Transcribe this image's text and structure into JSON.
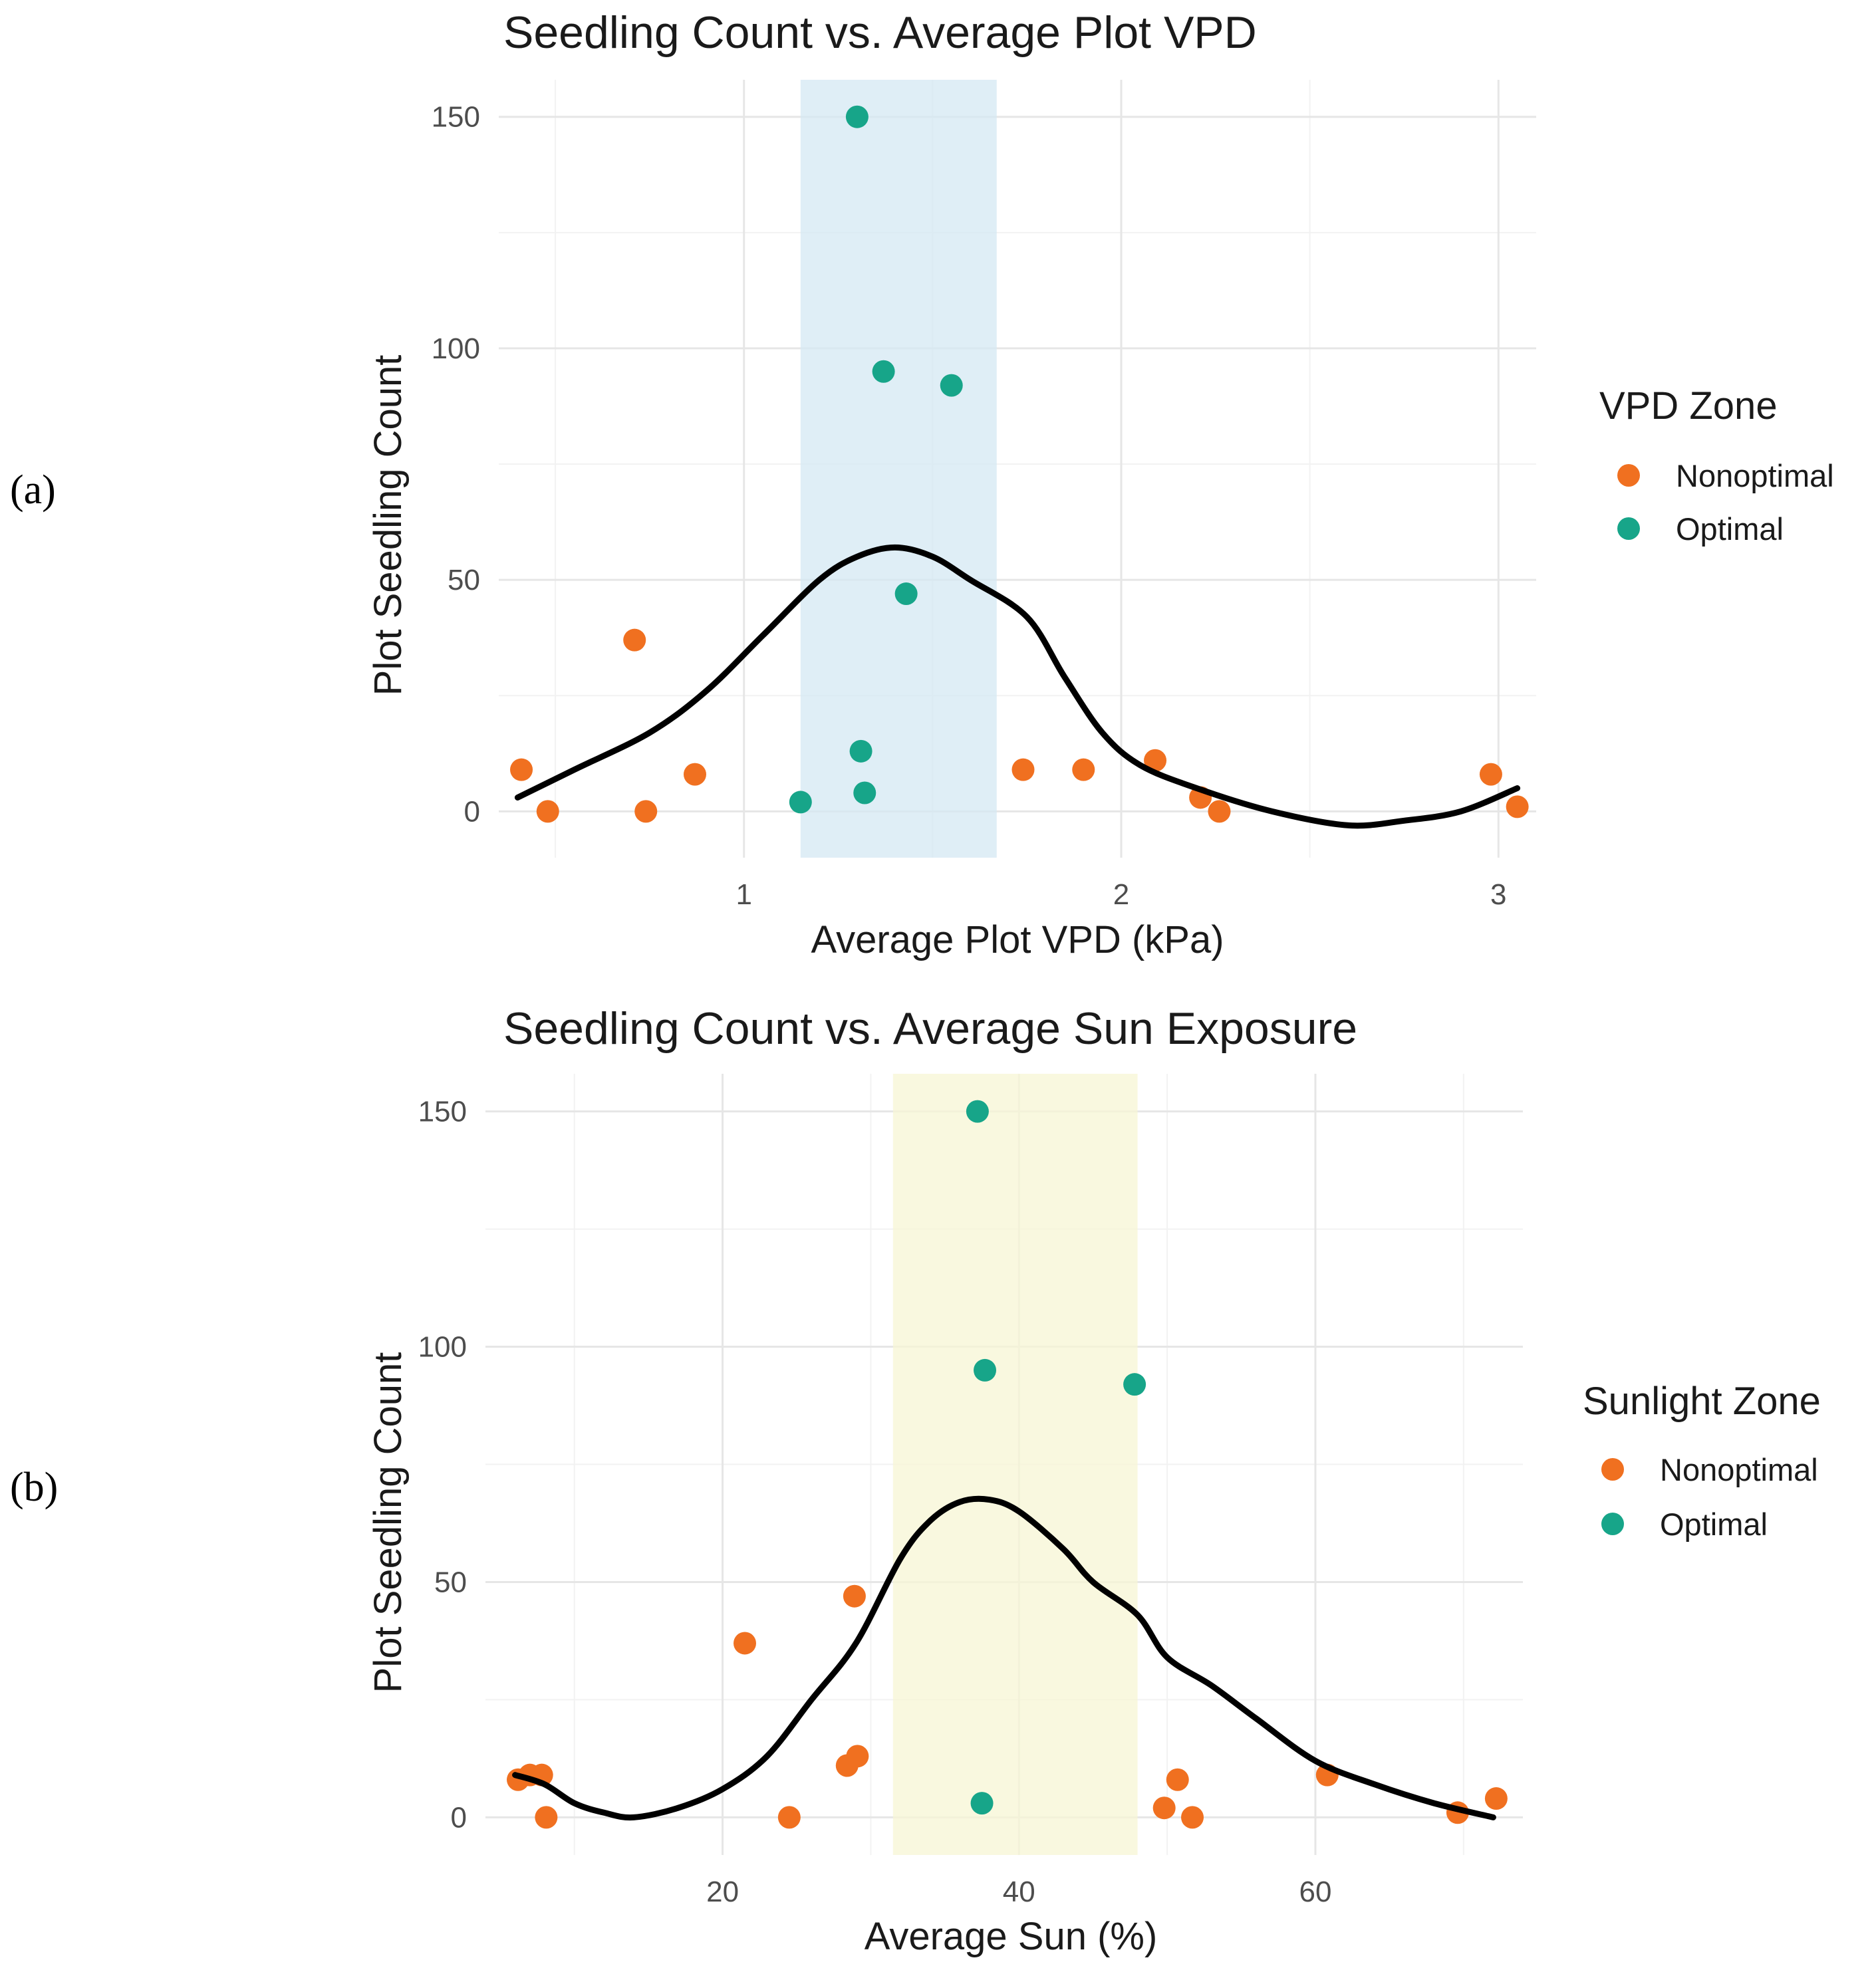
{
  "colors": {
    "nonoptimal": "#f07020",
    "optimal": "#17a589",
    "band_vpd": "#d4e8f3",
    "band_sun": "#f7f5d4",
    "curve": "#000000"
  },
  "chart_data": [
    {
      "panel_label": "(a)",
      "type": "scatter",
      "title": "Seedling Count vs. Average Plot VPD",
      "xlabel": "Average Plot VPD (kPa)",
      "ylabel": "Plot Seedling Count",
      "xlim": [
        0.35,
        3.1
      ],
      "ylim": [
        -10,
        158
      ],
      "xticks": [
        1,
        2,
        3
      ],
      "xminor": [
        0.5,
        1.5,
        2.5
      ],
      "yticks": [
        0,
        50,
        100,
        150
      ],
      "yminor": [
        25,
        75,
        125
      ],
      "shaded_band": [
        1.15,
        1.67
      ],
      "legend": {
        "title": "VPD Zone",
        "entries": [
          {
            "label": "Nonoptimal",
            "color": "#f07020"
          },
          {
            "label": "Optimal",
            "color": "#17a589"
          }
        ]
      },
      "series": [
        {
          "name": "Nonoptimal",
          "points": [
            [
              0.41,
              9
            ],
            [
              0.48,
              0
            ],
            [
              0.71,
              37
            ],
            [
              0.74,
              0
            ],
            [
              0.87,
              8
            ],
            [
              1.74,
              9
            ],
            [
              1.9,
              9
            ],
            [
              2.09,
              11
            ],
            [
              2.21,
              3
            ],
            [
              2.26,
              0
            ],
            [
              2.98,
              8
            ],
            [
              3.05,
              1
            ]
          ]
        },
        {
          "name": "Optimal",
          "points": [
            [
              1.3,
              150
            ],
            [
              1.37,
              95
            ],
            [
              1.55,
              92
            ],
            [
              1.43,
              47
            ],
            [
              1.31,
              13
            ],
            [
              1.15,
              2
            ],
            [
              1.32,
              4
            ]
          ]
        }
      ],
      "smooth_curve": [
        [
          0.4,
          3
        ],
        [
          0.55,
          9
        ],
        [
          0.75,
          17
        ],
        [
          0.9,
          26
        ],
        [
          1.05,
          38
        ],
        [
          1.2,
          50
        ],
        [
          1.3,
          55
        ],
        [
          1.4,
          57
        ],
        [
          1.5,
          55
        ],
        [
          1.6,
          50
        ],
        [
          1.75,
          42
        ],
        [
          1.85,
          29
        ],
        [
          1.95,
          17
        ],
        [
          2.05,
          10
        ],
        [
          2.2,
          5
        ],
        [
          2.4,
          0
        ],
        [
          2.6,
          -3
        ],
        [
          2.75,
          -2
        ],
        [
          2.9,
          0
        ],
        [
          3.05,
          5
        ]
      ]
    },
    {
      "panel_label": "(b)",
      "type": "scatter",
      "title": "Seedling Count vs. Average Sun Exposure",
      "xlabel": "Average Sun (%)",
      "ylabel": "Plot Seedling Count",
      "xlim": [
        4,
        74
      ],
      "ylim": [
        -8,
        158
      ],
      "xticks": [
        20,
        40,
        60
      ],
      "xminor": [
        10,
        30,
        50,
        70
      ],
      "yticks": [
        0,
        50,
        100,
        150
      ],
      "yminor": [
        25,
        75,
        125
      ],
      "shaded_band": [
        31.5,
        48
      ],
      "legend": {
        "title": "Sunlight Zone",
        "entries": [
          {
            "label": "Nonoptimal",
            "color": "#f07020"
          },
          {
            "label": "Optimal",
            "color": "#17a589"
          }
        ]
      },
      "series": [
        {
          "name": "Nonoptimal",
          "points": [
            [
              6.2,
              8
            ],
            [
              7,
              9
            ],
            [
              7.8,
              9
            ],
            [
              8.1,
              0
            ],
            [
              21.5,
              37
            ],
            [
              24.5,
              0
            ],
            [
              28.4,
              11
            ],
            [
              28.9,
              47
            ],
            [
              29.1,
              13
            ],
            [
              49.8,
              2
            ],
            [
              50.7,
              8
            ],
            [
              51.7,
              0
            ],
            [
              60.8,
              9
            ],
            [
              69.6,
              1
            ],
            [
              72.2,
              4
            ]
          ]
        },
        {
          "name": "Optimal",
          "points": [
            [
              37.2,
              150
            ],
            [
              37.7,
              95
            ],
            [
              47.8,
              92
            ],
            [
              37.5,
              3
            ]
          ]
        }
      ],
      "smooth_curve": [
        [
          6,
          9
        ],
        [
          8,
          7
        ],
        [
          10,
          3
        ],
        [
          12,
          1
        ],
        [
          14,
          0
        ],
        [
          17,
          2
        ],
        [
          20,
          6
        ],
        [
          23,
          13
        ],
        [
          26,
          25
        ],
        [
          29,
          37
        ],
        [
          32,
          55
        ],
        [
          34,
          63
        ],
        [
          36,
          67
        ],
        [
          38,
          67.5
        ],
        [
          40,
          65
        ],
        [
          43,
          57
        ],
        [
          45,
          50
        ],
        [
          48,
          43
        ],
        [
          50,
          34
        ],
        [
          53,
          28
        ],
        [
          56,
          21
        ],
        [
          60,
          12
        ],
        [
          64,
          7
        ],
        [
          68,
          3
        ],
        [
          72,
          0
        ]
      ]
    }
  ]
}
